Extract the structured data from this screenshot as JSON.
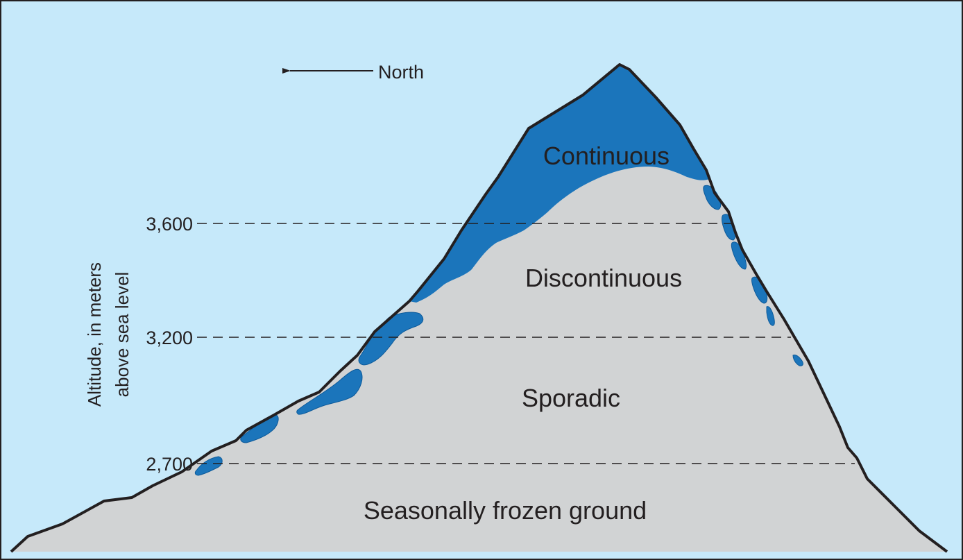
{
  "colors": {
    "sky": "#c6e9fa",
    "ground": "#d1d3d4",
    "continuous": "#1b75bb",
    "outline": "#231f20",
    "frame": "#231f20"
  },
  "direction": {
    "label": "North",
    "arrow": "left"
  },
  "axis": {
    "label_line1": "Altitude, in meters",
    "label_line2": "above sea level"
  },
  "levels": [
    {
      "label": "3,600",
      "value": 3600
    },
    {
      "label": "3,200",
      "value": 3200
    },
    {
      "label": "2,700",
      "value": 2700
    }
  ],
  "zones": {
    "continuous": "Continuous",
    "discontinuous": "Discontinuous",
    "sporadic": "Sporadic",
    "seasonal": "Seasonally frozen ground"
  }
}
